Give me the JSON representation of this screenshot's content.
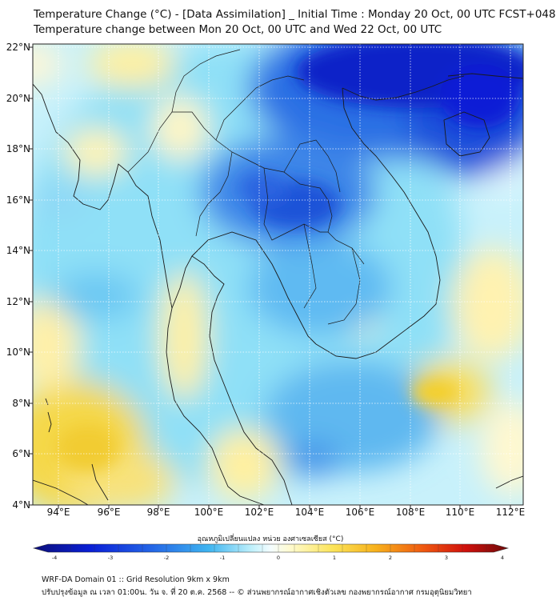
{
  "title": {
    "line1": "Temperature Change (°C) - [Data Assimilation] _ Initial Time : Monday 20 Oct, 00 UTC FCST+048",
    "line2": "Temperature change between Mon 20 Oct, 00 UTC and Wed 22 Oct, 00 UTC"
  },
  "map": {
    "lat_range": [
      4,
      22.2
    ],
    "lon_range": [
      93,
      112.6
    ],
    "lat_ticks": [
      "4°N",
      "6°N",
      "8°N",
      "10°N",
      "12°N",
      "14°N",
      "16°N",
      "18°N",
      "20°N",
      "22°N"
    ],
    "lon_ticks": [
      "94°E",
      "96°E",
      "98°E",
      "100°E",
      "102°E",
      "104°E",
      "106°E",
      "108°E",
      "110°E",
      "112°E"
    ],
    "field_note_colors": {
      "strong_cooling": "#0a1fd6",
      "cooling": "#2f7fe8",
      "mild_cooling": "#6fd0f5",
      "neutral": "#e9fbff",
      "mild_warming": "#fff3a0",
      "warming": "#f5d23a",
      "coastline": "#1a1a1a"
    }
  },
  "colorbar": {
    "title": "อุณหภูมิเปลี่ยนแปลง หน่วย องศาเซลเซียส (°C)",
    "ticks": [
      "-4",
      "-3",
      "-2",
      "-1",
      "0",
      "1",
      "2",
      "3",
      "4"
    ],
    "range": [
      -4,
      4
    ]
  },
  "footer": {
    "line1": "WRF-DA Domain 01 :: Grid Resolution 9km x 9km",
    "line2": "ปรับปรุงข้อมูล ณ เวลา 01:00น. วัน จ. ที่ 20 ต.ค. 2568 -- © ส่วนพยากรณ์อากาศเชิงตัวเลข กองพยากรณ์อากาศ กรมอุตุนิยมวิทยา"
  }
}
